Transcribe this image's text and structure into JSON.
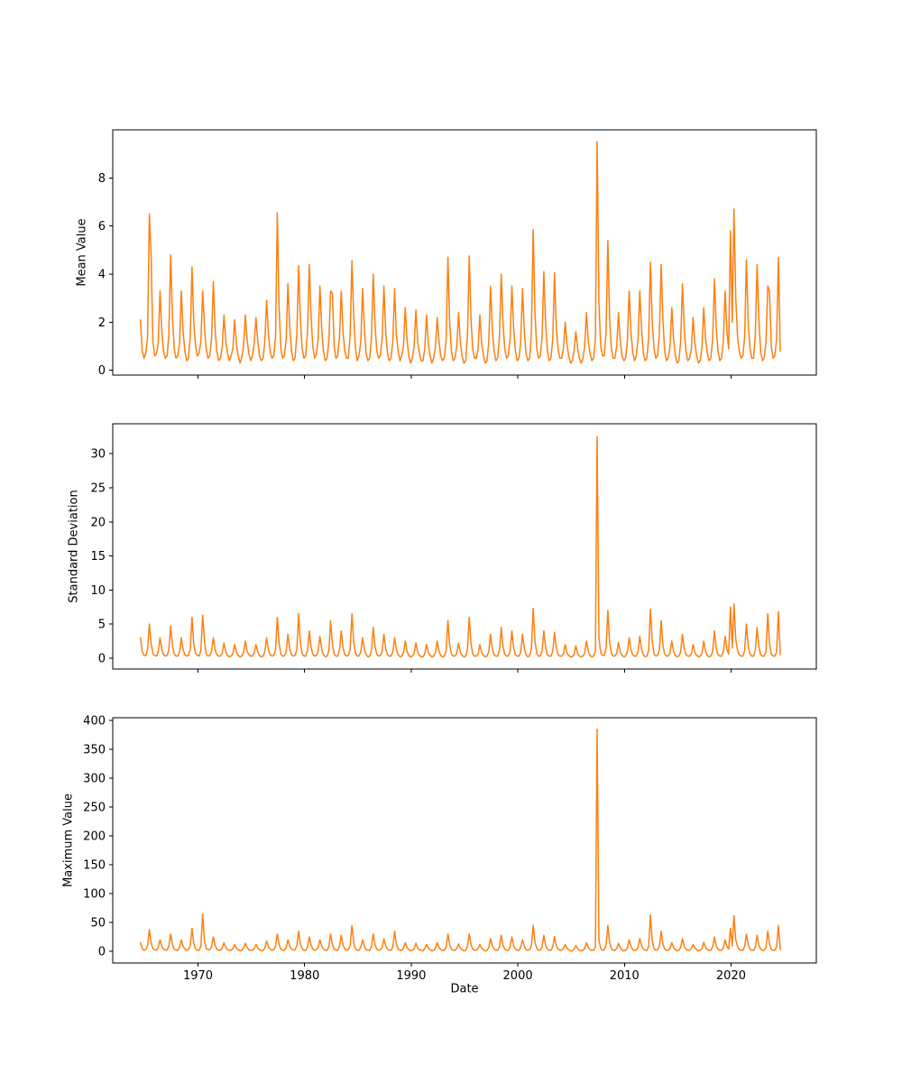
{
  "figure": {
    "background": "#ffffff"
  },
  "colors": {
    "line": "#ff7f0e",
    "axis": "#000000",
    "text": "#000000"
  },
  "chart_data": [
    {
      "type": "line",
      "title": "",
      "ylabel": "Mean Value",
      "xlabel": "",
      "xlim": [
        1962,
        2028
      ],
      "ylim": [
        -0.2,
        10.0
      ],
      "xticks": [
        1970,
        1980,
        1990,
        2000,
        2010,
        2020
      ],
      "xtick_labels": [],
      "yticks": [
        0,
        2,
        4,
        6,
        8
      ],
      "ytick_labels": [
        "0",
        "2",
        "4",
        "6",
        "8"
      ],
      "grid": false,
      "legend": null,
      "color": "#ff7f0e",
      "x_start": 1964.6,
      "x_step": 0.1667,
      "values": [
        2.1,
        0.8,
        0.5,
        0.7,
        1.4,
        6.5,
        4.8,
        1.2,
        0.6,
        0.7,
        1.1,
        3.3,
        1.6,
        0.8,
        0.5,
        0.6,
        1.5,
        4.8,
        2.2,
        0.9,
        0.5,
        0.6,
        1.1,
        3.3,
        1.6,
        0.8,
        0.4,
        0.5,
        1.4,
        4.3,
        2.0,
        1.0,
        0.6,
        0.7,
        1.2,
        3.3,
        1.8,
        0.9,
        0.5,
        0.6,
        1.3,
        3.7,
        1.7,
        0.8,
        0.4,
        0.5,
        1.0,
        2.3,
        1.2,
        0.7,
        0.4,
        0.6,
        0.9,
        2.1,
        1.1,
        0.6,
        0.3,
        0.5,
        1.0,
        2.3,
        1.3,
        0.7,
        0.4,
        0.6,
        1.1,
        2.2,
        1.2,
        0.6,
        0.4,
        0.5,
        1.2,
        2.9,
        1.5,
        0.8,
        0.5,
        0.6,
        1.4,
        6.55,
        2.6,
        0.9,
        0.5,
        0.6,
        1.3,
        3.6,
        1.8,
        0.8,
        0.4,
        0.5,
        1.5,
        4.35,
        2.1,
        0.9,
        0.5,
        0.6,
        1.6,
        4.4,
        2.2,
        1.0,
        0.5,
        0.7,
        1.3,
        3.5,
        1.7,
        0.8,
        0.4,
        0.5,
        1.2,
        3.3,
        3.2,
        1.0,
        0.5,
        0.6,
        1.4,
        3.3,
        1.6,
        0.8,
        0.5,
        0.5,
        1.5,
        4.55,
        2.3,
        0.9,
        0.4,
        0.6,
        1.2,
        3.4,
        1.7,
        0.7,
        0.4,
        0.5,
        1.4,
        4.0,
        1.9,
        0.8,
        0.5,
        0.6,
        1.3,
        3.5,
        1.6,
        0.7,
        0.4,
        0.5,
        1.2,
        3.4,
        1.5,
        0.8,
        0.4,
        0.6,
        1.0,
        2.6,
        1.3,
        0.6,
        0.3,
        0.5,
        1.0,
        2.5,
        1.2,
        0.7,
        0.4,
        0.4,
        0.9,
        2.3,
        1.1,
        0.6,
        0.3,
        0.5,
        1.0,
        2.2,
        1.2,
        0.6,
        0.4,
        0.5,
        1.3,
        4.7,
        2.0,
        0.8,
        0.4,
        0.5,
        1.0,
        2.4,
        1.2,
        0.6,
        0.3,
        0.4,
        1.4,
        4.75,
        2.1,
        0.9,
        0.5,
        0.5,
        0.9,
        2.3,
        1.1,
        0.6,
        0.3,
        0.4,
        1.2,
        3.5,
        1.7,
        0.8,
        0.4,
        0.5,
        1.4,
        4.0,
        2.0,
        0.9,
        0.5,
        0.6,
        1.3,
        3.5,
        1.8,
        0.8,
        0.4,
        0.5,
        1.2,
        3.4,
        1.6,
        0.7,
        0.4,
        0.5,
        1.5,
        5.85,
        2.4,
        0.9,
        0.5,
        0.6,
        1.4,
        4.1,
        1.9,
        0.8,
        0.4,
        0.5,
        1.3,
        4.05,
        1.8,
        0.9,
        0.5,
        0.5,
        0.9,
        2.0,
        1.1,
        0.6,
        0.3,
        0.4,
        0.8,
        1.6,
        0.9,
        0.5,
        0.3,
        0.5,
        1.0,
        2.4,
        1.2,
        0.7,
        0.4,
        0.5,
        1.3,
        9.5,
        2.8,
        1.0,
        0.6,
        0.6,
        1.6,
        5.4,
        2.2,
        0.9,
        0.5,
        0.5,
        1.0,
        2.4,
        1.2,
        0.6,
        0.4,
        0.5,
        1.2,
        3.3,
        1.6,
        0.8,
        0.4,
        0.6,
        1.3,
        3.3,
        1.7,
        0.7,
        0.4,
        0.5,
        1.4,
        4.5,
        2.0,
        0.9,
        0.5,
        0.6,
        1.5,
        4.4,
        2.1,
        0.8,
        0.4,
        0.5,
        1.0,
        2.6,
        1.3,
        0.6,
        0.3,
        0.4,
        1.2,
        3.6,
        1.7,
        0.8,
        0.4,
        0.5,
        0.9,
        2.2,
        1.1,
        0.6,
        0.3,
        0.4,
        1.0,
        2.6,
        1.3,
        0.7,
        0.4,
        0.5,
        1.3,
        3.8,
        1.8,
        0.8,
        0.4,
        0.5,
        1.2,
        3.3,
        1.6,
        0.9,
        5.8,
        2.0,
        6.7,
        3.0,
        1.4,
        0.8,
        0.5,
        0.6,
        1.4,
        4.6,
        2.0,
        0.9,
        0.5,
        0.5,
        1.5,
        4.4,
        2.1,
        0.8,
        0.4,
        0.5,
        1.2,
        3.5,
        3.3,
        1.0,
        0.5,
        0.6,
        1.3,
        4.7,
        0.8
      ]
    },
    {
      "type": "line",
      "title": "",
      "ylabel": "Standard Deviation",
      "xlabel": "",
      "xlim": [
        1962,
        2028
      ],
      "ylim": [
        -1.6,
        34.4
      ],
      "xticks": [
        1970,
        1980,
        1990,
        2000,
        2010,
        2020
      ],
      "xtick_labels": [],
      "yticks": [
        0,
        5,
        10,
        15,
        20,
        25,
        30
      ],
      "ytick_labels": [
        "0",
        "5",
        "10",
        "15",
        "20",
        "25",
        "30"
      ],
      "grid": false,
      "legend": null,
      "color": "#ff7f0e",
      "x_start": 1964.6,
      "x_step": 0.1667,
      "values": [
        3.0,
        1.0,
        0.4,
        0.4,
        1.2,
        5.0,
        2.2,
        0.7,
        0.4,
        0.3,
        0.9,
        3.0,
        1.3,
        0.5,
        0.3,
        0.4,
        1.2,
        4.7,
        1.8,
        0.6,
        0.3,
        0.3,
        0.9,
        3.0,
        1.3,
        0.5,
        0.3,
        0.4,
        1.3,
        6.0,
        2.0,
        0.7,
        0.4,
        0.3,
        1.1,
        6.3,
        2.4,
        0.6,
        0.3,
        0.4,
        0.9,
        3.0,
        1.2,
        0.5,
        0.3,
        0.3,
        0.7,
        2.2,
        1.0,
        0.4,
        0.2,
        0.3,
        0.6,
        2.0,
        0.9,
        0.4,
        0.2,
        0.3,
        0.8,
        2.5,
        1.0,
        0.5,
        0.3,
        0.3,
        0.7,
        2.0,
        0.9,
        0.4,
        0.2,
        0.3,
        0.9,
        3.0,
        1.2,
        0.5,
        0.3,
        0.4,
        1.2,
        6.0,
        2.2,
        0.6,
        0.3,
        0.3,
        1.0,
        3.5,
        1.4,
        0.5,
        0.3,
        0.4,
        1.3,
        6.5,
        2.3,
        0.7,
        0.3,
        0.3,
        1.1,
        4.0,
        1.6,
        0.6,
        0.3,
        0.4,
        1.0,
        3.2,
        1.3,
        0.5,
        0.2,
        0.3,
        1.1,
        5.5,
        2.0,
        0.6,
        0.3,
        0.3,
        1.2,
        4.0,
        1.5,
        0.5,
        0.3,
        0.4,
        1.3,
        6.5,
        2.4,
        0.7,
        0.3,
        0.3,
        0.9,
        3.0,
        1.2,
        0.5,
        0.2,
        0.3,
        1.1,
        4.5,
        1.7,
        0.6,
        0.3,
        0.4,
        1.0,
        3.5,
        1.4,
        0.5,
        0.3,
        0.3,
        0.9,
        3.0,
        1.3,
        0.5,
        0.2,
        0.3,
        0.8,
        2.5,
        1.0,
        0.4,
        0.2,
        0.3,
        0.7,
        2.2,
        0.9,
        0.4,
        0.2,
        0.2,
        0.6,
        2.0,
        0.8,
        0.4,
        0.2,
        0.3,
        0.8,
        2.5,
        1.0,
        0.4,
        0.2,
        0.3,
        1.1,
        5.5,
        1.9,
        0.6,
        0.3,
        0.3,
        0.7,
        2.2,
        0.9,
        0.4,
        0.2,
        0.3,
        1.2,
        6.0,
        2.1,
        0.6,
        0.3,
        0.3,
        0.6,
        2.0,
        0.8,
        0.4,
        0.2,
        0.3,
        0.9,
        3.5,
        1.4,
        0.5,
        0.3,
        0.3,
        1.1,
        4.5,
        1.7,
        0.6,
        0.3,
        0.3,
        1.0,
        4.0,
        1.5,
        0.5,
        0.3,
        0.3,
        0.9,
        3.5,
        1.4,
        0.5,
        0.2,
        0.4,
        1.3,
        7.3,
        2.5,
        0.7,
        0.3,
        0.3,
        1.1,
        4.0,
        1.6,
        0.5,
        0.3,
        0.3,
        1.0,
        3.8,
        1.5,
        0.5,
        0.3,
        0.3,
        0.6,
        2.0,
        0.8,
        0.4,
        0.2,
        0.2,
        0.5,
        1.8,
        0.7,
        0.3,
        0.2,
        0.3,
        0.7,
        2.5,
        1.0,
        0.4,
        0.2,
        0.3,
        1.0,
        32.5,
        3.0,
        0.8,
        0.4,
        0.4,
        1.4,
        7.0,
        2.4,
        0.7,
        0.3,
        0.3,
        0.7,
        2.3,
        0.9,
        0.4,
        0.2,
        0.3,
        0.9,
        3.0,
        1.2,
        0.5,
        0.3,
        0.3,
        1.0,
        3.2,
        1.3,
        0.5,
        0.2,
        0.3,
        1.2,
        7.2,
        2.5,
        0.6,
        0.3,
        0.4,
        1.2,
        5.5,
        1.9,
        0.6,
        0.3,
        0.3,
        0.8,
        2.5,
        1.0,
        0.4,
        0.2,
        0.3,
        0.9,
        3.5,
        1.4,
        0.5,
        0.3,
        0.3,
        0.6,
        2.0,
        0.8,
        0.4,
        0.2,
        0.3,
        0.7,
        2.5,
        1.0,
        0.4,
        0.2,
        0.3,
        1.0,
        4.0,
        1.5,
        0.5,
        0.3,
        0.3,
        0.9,
        3.2,
        1.3,
        0.6,
        7.5,
        1.5,
        8.0,
        2.8,
        1.1,
        0.5,
        0.3,
        0.3,
        1.2,
        5.0,
        1.8,
        0.6,
        0.3,
        0.3,
        1.1,
        4.5,
        1.7,
        0.5,
        0.3,
        0.3,
        1.0,
        6.5,
        2.2,
        0.6,
        0.3,
        0.3,
        0.9,
        6.8,
        0.5
      ]
    },
    {
      "type": "line",
      "title": "",
      "ylabel": "Maximum Value",
      "xlabel": "Date",
      "xlim": [
        1962,
        2028
      ],
      "ylim": [
        -20,
        405
      ],
      "xticks": [
        1970,
        1980,
        1990,
        2000,
        2010,
        2020
      ],
      "xtick_labels": [
        "1970",
        "1980",
        "1990",
        "2000",
        "2010",
        "2020"
      ],
      "yticks": [
        0,
        50,
        100,
        150,
        200,
        250,
        300,
        350,
        400
      ],
      "ytick_labels": [
        "0",
        "50",
        "100",
        "150",
        "200",
        "250",
        "300",
        "350",
        "400"
      ],
      "grid": false,
      "legend": null,
      "color": "#ff7f0e",
      "x_start": 1964.6,
      "x_step": 0.1667,
      "values": [
        15,
        5,
        2,
        3,
        10,
        38,
        15,
        5,
        3,
        2,
        7,
        20,
        9,
        4,
        2,
        3,
        9,
        30,
        12,
        4,
        2,
        2,
        7,
        20,
        9,
        4,
        2,
        3,
        10,
        40,
        14,
        5,
        2,
        2,
        9,
        65,
        18,
        5,
        3,
        3,
        8,
        25,
        10,
        4,
        2,
        2,
        6,
        15,
        7,
        3,
        2,
        2,
        5,
        12,
        6,
        3,
        1,
        2,
        6,
        14,
        7,
        3,
        2,
        2,
        5,
        12,
        6,
        3,
        1,
        2,
        6,
        18,
        8,
        4,
        2,
        3,
        9,
        30,
        13,
        4,
        2,
        2,
        7,
        20,
        9,
        4,
        2,
        3,
        10,
        35,
        13,
        5,
        2,
        2,
        8,
        25,
        11,
        4,
        2,
        3,
        7,
        20,
        9,
        4,
        2,
        2,
        8,
        30,
        12,
        4,
        2,
        2,
        9,
        28,
        11,
        4,
        2,
        3,
        10,
        45,
        16,
        5,
        2,
        2,
        7,
        20,
        9,
        3,
        2,
        2,
        8,
        30,
        12,
        4,
        2,
        3,
        7,
        22,
        10,
        4,
        2,
        2,
        8,
        35,
        13,
        4,
        2,
        2,
        6,
        15,
        7,
        3,
        1,
        2,
        5,
        14,
        6,
        3,
        2,
        1,
        5,
        12,
        6,
        3,
        1,
        2,
        6,
        15,
        7,
        3,
        2,
        2,
        8,
        30,
        12,
        4,
        2,
        2,
        5,
        13,
        6,
        3,
        1,
        2,
        9,
        30,
        12,
        4,
        2,
        2,
        5,
        12,
        6,
        3,
        1,
        2,
        7,
        22,
        10,
        4,
        2,
        2,
        8,
        28,
        11,
        4,
        2,
        2,
        8,
        25,
        10,
        4,
        2,
        2,
        7,
        20,
        9,
        3,
        2,
        3,
        10,
        45,
        16,
        5,
        2,
        2,
        8,
        28,
        11,
        4,
        2,
        2,
        8,
        26,
        10,
        4,
        2,
        2,
        5,
        12,
        6,
        3,
        1,
        1,
        4,
        10,
        5,
        2,
        1,
        2,
        5,
        15,
        7,
        3,
        2,
        2,
        8,
        385,
        20,
        5,
        2,
        3,
        11,
        45,
        16,
        5,
        2,
        2,
        5,
        14,
        6,
        3,
        1,
        2,
        6,
        20,
        9,
        3,
        2,
        2,
        7,
        22,
        10,
        4,
        2,
        2,
        9,
        63,
        18,
        5,
        2,
        3,
        9,
        35,
        13,
        4,
        2,
        2,
        5,
        15,
        7,
        3,
        1,
        2,
        7,
        22,
        9,
        4,
        2,
        2,
        5,
        12,
        6,
        3,
        1,
        2,
        5,
        16,
        7,
        3,
        2,
        2,
        8,
        25,
        10,
        4,
        2,
        2,
        6,
        20,
        8,
        4,
        40,
        10,
        62,
        20,
        8,
        3,
        2,
        2,
        9,
        30,
        12,
        4,
        2,
        2,
        8,
        28,
        11,
        4,
        2,
        2,
        7,
        35,
        13,
        4,
        2,
        2,
        8,
        45,
        3
      ]
    }
  ]
}
